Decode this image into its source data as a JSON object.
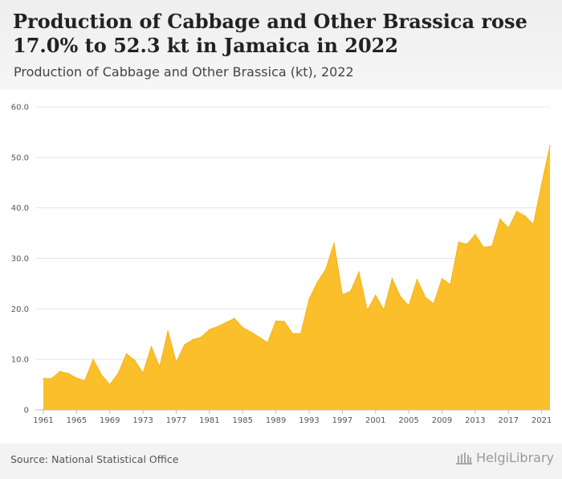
{
  "header": {
    "title": "Production of Cabbage and Other Brassica rose 17.0% to 52.3 kt in Jamaica in 2022",
    "subtitle": "Production of Cabbage and Other Brassica (kt), 2022"
  },
  "footer": {
    "source": "Source: National Statistical Office",
    "brand": "HelgiLibrary"
  },
  "colors": {
    "area_fill": "#fbbf2b",
    "area_line": "#f4b41a",
    "grid": "#e4e4e4",
    "header_bg": "#eeeeee",
    "footer_bg": "#f3f3f3"
  },
  "chart_data": {
    "type": "area",
    "title": "Production of Cabbage and Other Brassica rose 17.0% to 52.3 kt in Jamaica in 2022",
    "subtitle": "Production of Cabbage and Other Brassica (kt), 2022",
    "x_tick_labels": [
      "1961",
      "1965",
      "1969",
      "1973",
      "1977",
      "1981",
      "1985",
      "1989",
      "1993",
      "1997",
      "2001",
      "2005",
      "2009",
      "2013",
      "2017",
      "2021"
    ],
    "y_tick_labels": [
      "0",
      "10.0",
      "20.0",
      "30.0",
      "40.0",
      "50.0",
      "60.0"
    ],
    "ylim": [
      0,
      60
    ],
    "xlim": [
      1961,
      2022
    ],
    "grid": "horizontal",
    "legend": "none",
    "series": [
      {
        "x": [
          1961,
          1962,
          1963,
          1964,
          1965,
          1966,
          1967,
          1968,
          1969,
          1970,
          1971,
          1972,
          1973,
          1974,
          1975,
          1976,
          1977,
          1978,
          1979,
          1980,
          1981,
          1982,
          1983,
          1984,
          1985,
          1986,
          1987,
          1988,
          1989,
          1990,
          1991,
          1992,
          1993,
          1994,
          1995,
          1996,
          1997,
          1998,
          1999,
          2000,
          2001,
          2002,
          2003,
          2004,
          2005,
          2006,
          2007,
          2008,
          2009,
          2010,
          2011,
          2012,
          2013,
          2014,
          2015,
          2016,
          2017,
          2018,
          2019,
          2020,
          2021,
          2022
        ],
        "values": [
          6.2,
          6.2,
          7.6,
          7.2,
          6.3,
          5.8,
          10.0,
          6.9,
          5.0,
          7.2,
          11.1,
          9.8,
          7.3,
          12.5,
          8.5,
          15.6,
          9.4,
          12.9,
          13.9,
          14.4,
          15.9,
          16.5,
          17.3,
          18.1,
          16.3,
          15.4,
          14.4,
          13.3,
          17.6,
          17.5,
          15.1,
          15.1,
          21.9,
          25.3,
          27.8,
          33.0,
          22.8,
          23.5,
          27.3,
          19.7,
          22.7,
          19.8,
          26.0,
          22.4,
          20.6,
          25.8,
          22.3,
          21.0,
          26.0,
          24.8,
          33.2,
          32.8,
          34.7,
          32.2,
          32.4,
          37.8,
          36.0,
          39.3,
          38.4,
          36.7,
          44.7,
          52.3
        ]
      }
    ]
  }
}
